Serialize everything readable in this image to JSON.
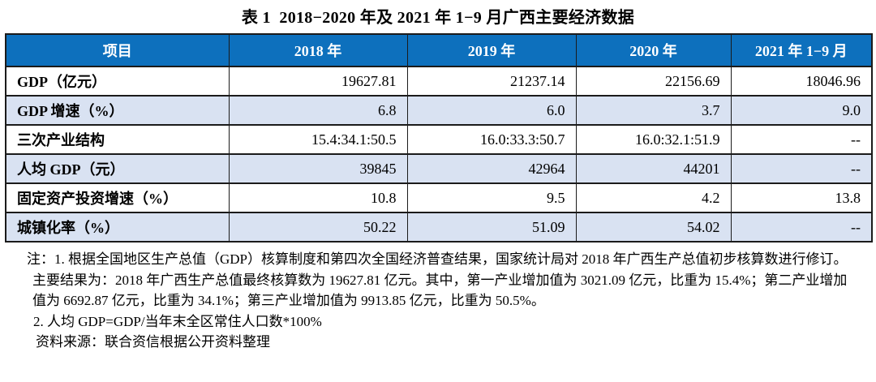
{
  "page": {
    "title": "表 1  2018−2020 年及 2021 年 1−9 月广西主要经济数据"
  },
  "table": {
    "headers": [
      "项目",
      "2018 年",
      "2019 年",
      "2020 年",
      "2021 年 1−9 月"
    ],
    "rows": [
      {
        "label": "GDP（亿元）",
        "values": [
          "19627.81",
          "21237.14",
          "22156.69",
          "18046.96"
        ]
      },
      {
        "label": "GDP 增速（%）",
        "values": [
          "6.8",
          "6.0",
          "3.7",
          "9.0"
        ]
      },
      {
        "label": "三次产业结构",
        "values": [
          "15.4:34.1:50.5",
          "16.0:33.3:50.7",
          "16.0:32.1:51.9",
          "--"
        ]
      },
      {
        "label": "人均 GDP（元）",
        "values": [
          "39845",
          "42964",
          "44201",
          "--"
        ]
      },
      {
        "label": "固定资产投资增速（%）",
        "values": [
          "10.8",
          "9.5",
          "4.2",
          "13.8"
        ]
      },
      {
        "label": "城镇化率（%）",
        "values": [
          "50.22",
          "51.09",
          "54.02",
          "--"
        ]
      }
    ]
  },
  "notes": {
    "note1": "注：1. 根据全国地区生产总值（GDP）核算制度和第四次全国经济普查结果，国家统计局对 2018 年广西生产总值初步核算数进行修订。主要结果为：2018 年广西生产总值最终核算数为 19627.81 亿元。其中，第一产业增加值为 3021.09 亿元，比重为 15.4%；第二产业增加值为 6692.87 亿元，比重为 34.1%；第三产业增加值为 9913.85 亿元，比重为 50.5%。",
    "note2": "2. 人均 GDP=GDP/当年末全区常住人口数*100%",
    "source": "资料来源：联合资信根据公开资料整理"
  },
  "colors": {
    "header_bg": "#0d70bd",
    "header_text": "#ffffff",
    "alt_row_bg": "#d9e2f2",
    "border": "#1b1b1b"
  }
}
